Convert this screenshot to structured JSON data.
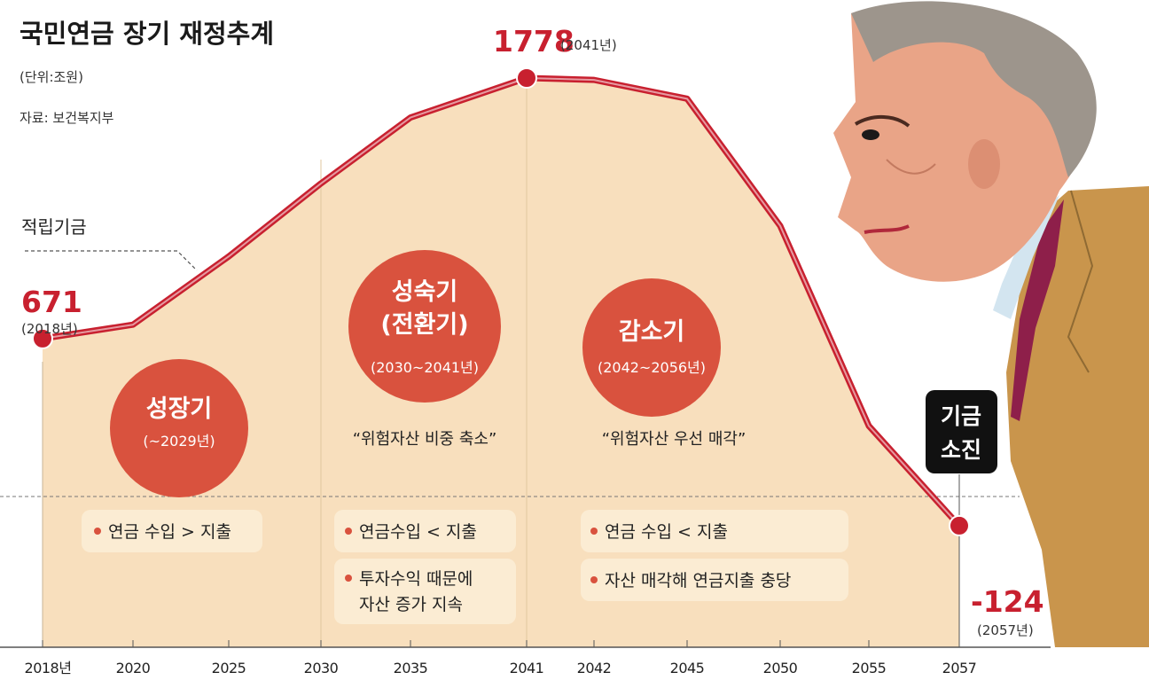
{
  "chart_data": {
    "type": "area",
    "title": "국민연금 장기 재정추계",
    "unit": "(단위:조원)",
    "source": "자료: 보건복지부",
    "series_label": "적립기금",
    "x_ticks": [
      "2018년",
      "2020",
      "2025",
      "2030",
      "2035",
      "2041",
      "2042",
      "2045",
      "2050",
      "2055",
      "2057"
    ],
    "points": [
      {
        "x": "2018",
        "y": 671
      },
      {
        "x": "2020",
        "y": 730
      },
      {
        "x": "2025",
        "y": 1020
      },
      {
        "x": "2030",
        "y": 1330
      },
      {
        "x": "2035",
        "y": 1610
      },
      {
        "x": "2041",
        "y": 1778
      },
      {
        "x": "2042",
        "y": 1770
      },
      {
        "x": "2045",
        "y": 1690
      },
      {
        "x": "2050",
        "y": 1150
      },
      {
        "x": "2055",
        "y": 300
      },
      {
        "x": "2057",
        "y": -124
      }
    ],
    "start_label": {
      "value": "671",
      "year": "(2018년)"
    },
    "peak_label": {
      "value": "1778",
      "year": "(2041년)"
    },
    "end_label": {
      "value": "-124",
      "year": "(2057년)"
    },
    "phases": [
      {
        "name": "성장기",
        "name2": "",
        "range": "(~2029년)",
        "quote": "",
        "notes": [
          "연금 수입 > 지출"
        ]
      },
      {
        "name": "성숙기",
        "name2": "(전환기)",
        "range": "(2030~2041년)",
        "quote": "“위험자산 비중 축소”",
        "notes": [
          "연금수입 < 지출",
          "투자수익 때문에",
          "자산 증가 지속"
        ]
      },
      {
        "name": "감소기",
        "name2": "",
        "range": "(2042~2056년)",
        "quote": "“위험자산 우선 매각”",
        "notes": [
          "연금 수입 < 지출",
          "자산 매각해 연금지출 충당"
        ]
      }
    ],
    "depletion_badge": [
      "기금",
      "소진"
    ]
  },
  "colors": {
    "line": "#c8202f",
    "area": "#f8dfbd",
    "phase_circle": "#d9523e",
    "note_box": "#fbecd3",
    "jacket": "#c9954c",
    "skin": "#e9a487",
    "hair": "#9d958c"
  }
}
